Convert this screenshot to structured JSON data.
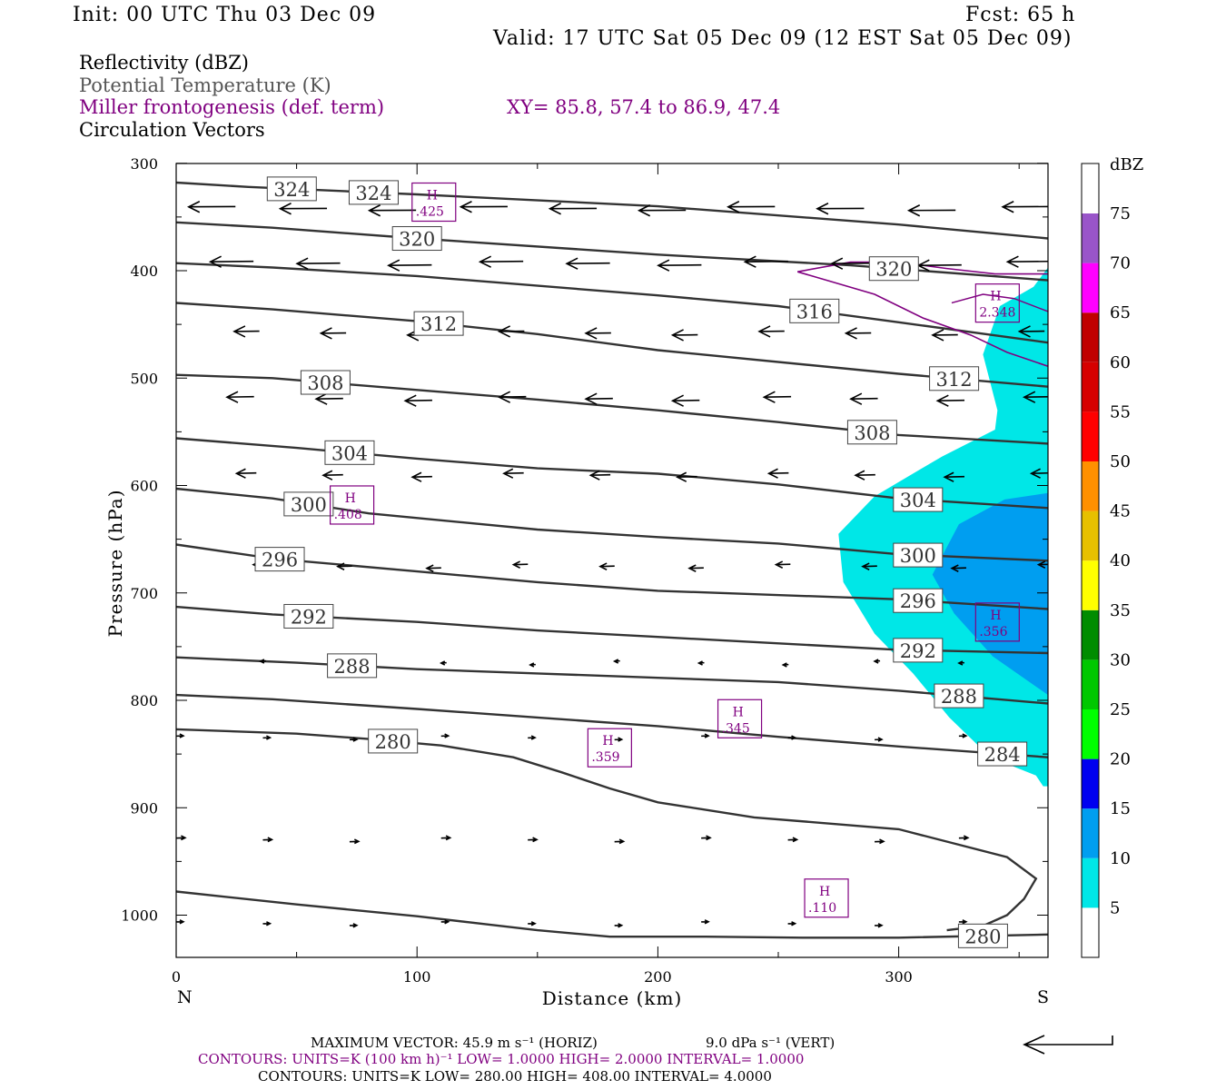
{
  "header": {
    "init": "Init: 00 UTC Thu 03 Dec 09",
    "fcst": "Fcst:   65 h",
    "valid": "Valid: 17 UTC Sat 05 Dec 09 (12 EST Sat 05 Dec 09)",
    "field1": "Reflectivity (dBZ)",
    "field2": "Potential Temperature (K)",
    "field3": "Miller frontogenesis (def. term)",
    "xy": "XY=  85.8, 57.4 to  86.9, 47.4",
    "field4": "Circulation Vectors"
  },
  "footer": {
    "maxvec": "MAXIMUM VECTOR:  45.9 m s⁻¹ (HORIZ)",
    "vert": "9.0 dPa s⁻¹ (VERT)",
    "contours_purple": "CONTOURS:  UNITS=K (100 km h)⁻¹  LOW=  1.0000      HIGH=  2.0000      INTERVAL=    1.0000",
    "contours_black": "CONTOURS:  UNITS=K   LOW=   280.00        HIGH=   408.00        INTERVAL=    4.0000"
  },
  "chart_data": {
    "type": "cross-section",
    "xlabel": "Distance (km)",
    "ylabel": "Pressure (hPa)",
    "xlim": [
      0,
      362
    ],
    "ylim": [
      1040,
      300
    ],
    "x_ticks": [
      "0",
      "100",
      "200",
      "300"
    ],
    "y_ticks": [
      "300",
      "400",
      "500",
      "600",
      "700",
      "800",
      "900",
      "1000"
    ],
    "x_end_labels": {
      "left": "N",
      "right": "S"
    },
    "colorbar": {
      "unit": "dBZ",
      "levels": [
        "5",
        "10",
        "15",
        "20",
        "25",
        "30",
        "35",
        "40",
        "45",
        "50",
        "55",
        "60",
        "65",
        "70",
        "75"
      ],
      "colors": [
        "#ffffff",
        "#00e7e7",
        "#009ef0",
        "#0000f0",
        "#00ff00",
        "#00c800",
        "#008c00",
        "#ffff00",
        "#e7c000",
        "#ff9000",
        "#ff0000",
        "#d60000",
        "#c00000",
        "#ff00ff",
        "#9955c9",
        "#ffffff"
      ]
    },
    "theta_isentropes": [
      {
        "label": "324",
        "pts": [
          [
            0,
            318
          ],
          [
            30,
            322
          ],
          [
            100,
            329
          ],
          [
            200,
            340
          ],
          [
            300,
            357
          ],
          [
            362,
            370
          ]
        ]
      },
      {
        "label": "320",
        "pts": [
          [
            0,
            355
          ],
          [
            40,
            360
          ],
          [
            100,
            370
          ],
          [
            200,
            385
          ],
          [
            280,
            395
          ],
          [
            362,
            409
          ]
        ]
      },
      {
        "label": "316",
        "pts": [
          [
            0,
            393
          ],
          [
            40,
            397
          ],
          [
            100,
            405
          ],
          [
            200,
            423
          ],
          [
            250,
            433
          ],
          [
            300,
            448
          ],
          [
            362,
            467
          ]
        ]
      },
      {
        "label": "312",
        "pts": [
          [
            0,
            430
          ],
          [
            40,
            436
          ],
          [
            100,
            447
          ],
          [
            150,
            459
          ],
          [
            200,
            474
          ],
          [
            300,
            496
          ],
          [
            362,
            508
          ]
        ]
      },
      {
        "label": "308",
        "pts": [
          [
            0,
            497
          ],
          [
            40,
            500
          ],
          [
            100,
            511
          ],
          [
            150,
            520
          ],
          [
            200,
            530
          ],
          [
            250,
            541
          ],
          [
            300,
            553
          ],
          [
            362,
            561
          ]
        ]
      },
      {
        "label": "304",
        "pts": [
          [
            0,
            556
          ],
          [
            50,
            565
          ],
          [
            100,
            575
          ],
          [
            150,
            584
          ],
          [
            200,
            589
          ],
          [
            250,
            599
          ],
          [
            300,
            612
          ],
          [
            362,
            621
          ]
        ]
      },
      {
        "label": "300",
        "pts": [
          [
            0,
            603
          ],
          [
            40,
            612
          ],
          [
            80,
            626
          ],
          [
            150,
            641
          ],
          [
            200,
            648
          ],
          [
            250,
            654
          ],
          [
            300,
            664
          ],
          [
            362,
            670
          ]
        ]
      },
      {
        "label": "296",
        "pts": [
          [
            0,
            655
          ],
          [
            40,
            668
          ],
          [
            100,
            680
          ],
          [
            150,
            690
          ],
          [
            200,
            698
          ],
          [
            300,
            706
          ],
          [
            362,
            715
          ]
        ]
      },
      {
        "label": "292",
        "pts": [
          [
            0,
            713
          ],
          [
            40,
            720
          ],
          [
            100,
            727
          ],
          [
            150,
            735
          ],
          [
            200,
            741
          ],
          [
            300,
            753
          ],
          [
            362,
            756
          ]
        ]
      },
      {
        "label": "288",
        "pts": [
          [
            0,
            760
          ],
          [
            50,
            765
          ],
          [
            100,
            771
          ],
          [
            150,
            775
          ],
          [
            200,
            779
          ],
          [
            250,
            783
          ],
          [
            300,
            791
          ],
          [
            362,
            803
          ]
        ]
      },
      {
        "label": "284",
        "pts": [
          [
            0,
            795
          ],
          [
            40,
            799
          ],
          [
            100,
            808
          ],
          [
            150,
            816
          ],
          [
            200,
            824
          ],
          [
            250,
            834
          ],
          [
            300,
            843
          ],
          [
            362,
            853
          ]
        ]
      },
      {
        "label": "280",
        "pts": [
          [
            0,
            827
          ],
          [
            50,
            831
          ],
          [
            80,
            836
          ],
          [
            110,
            842
          ],
          [
            140,
            853
          ],
          [
            160,
            867
          ],
          [
            180,
            882
          ],
          [
            200,
            895
          ],
          [
            240,
            909
          ],
          [
            300,
            920
          ],
          [
            345,
            946
          ],
          [
            357,
            966
          ],
          [
            352,
            985
          ],
          [
            345,
            1000
          ],
          [
            335,
            1010
          ],
          [
            320,
            1014
          ]
        ]
      },
      {
        "label": "280",
        "pts": [
          [
            0,
            978
          ],
          [
            50,
            990
          ],
          [
            100,
            1001
          ],
          [
            150,
            1014
          ],
          [
            180,
            1020
          ],
          [
            220,
            1020
          ],
          [
            260,
            1021
          ],
          [
            300,
            1021
          ],
          [
            362,
            1018
          ]
        ]
      }
    ],
    "frontogenesis_maxima": [
      {
        "label": "H",
        "value": ".425",
        "x": 107,
        "p": 337
      },
      {
        "label": "H",
        "value": "2.348",
        "x": 341,
        "p": 431
      },
      {
        "label": "H",
        "value": ".408",
        "x": 73,
        "p": 619
      },
      {
        "label": "H",
        "value": ".356",
        "x": 341,
        "p": 728
      },
      {
        "label": "H",
        "value": ".345",
        "x": 234,
        "p": 818
      },
      {
        "label": "H",
        "value": ".359",
        "x": 180,
        "p": 845
      },
      {
        "label": "H",
        "value": ".110",
        "x": 270,
        "p": 985
      }
    ]
  },
  "colors": {
    "isentrope": "#333333",
    "frontogenesis": "#800080",
    "refl_light": "#00e7e7",
    "refl_mid": "#009ef0"
  }
}
